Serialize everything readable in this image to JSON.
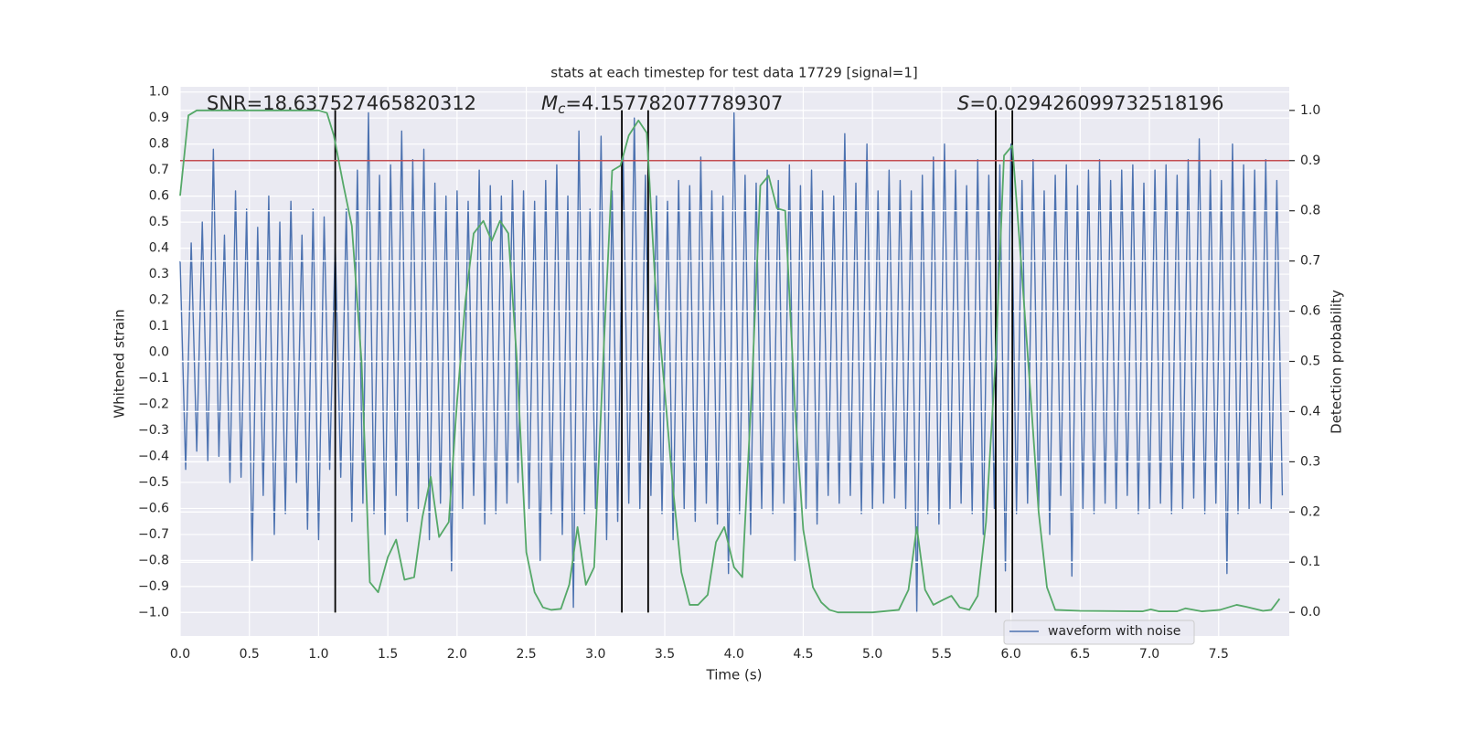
{
  "chart_data": {
    "type": "line",
    "title": "stats at each timestep for test data 17729 [signal=1]",
    "xlabel": "Time (s)",
    "ylabel": "Whitened strain",
    "y2label": "Detection probability",
    "grid": true,
    "xlim": [
      0,
      8.01
    ],
    "ylim": [
      -1.09,
      1.02
    ],
    "y2lim": [
      -0.047,
      1.047
    ],
    "xticks": [
      {
        "value": 0,
        "label": "0.0"
      },
      {
        "value": 0.5,
        "label": "0.5"
      },
      {
        "value": 1,
        "label": "1.0"
      },
      {
        "value": 1.5,
        "label": "1.5"
      },
      {
        "value": 2,
        "label": "2.0"
      },
      {
        "value": 2.5,
        "label": "2.5"
      },
      {
        "value": 3,
        "label": "3.0"
      },
      {
        "value": 3.5,
        "label": "3.5"
      },
      {
        "value": 4,
        "label": "4.0"
      },
      {
        "value": 4.5,
        "label": "4.5"
      },
      {
        "value": 5,
        "label": "5.0"
      },
      {
        "value": 5.5,
        "label": "5.5"
      },
      {
        "value": 6,
        "label": "6.0"
      },
      {
        "value": 6.5,
        "label": "6.5"
      },
      {
        "value": 7,
        "label": "7.0"
      },
      {
        "value": 7.5,
        "label": "7.5"
      }
    ],
    "yticks": [
      {
        "value": -1,
        "label": "−1.0"
      },
      {
        "value": -0.9,
        "label": "−0.9"
      },
      {
        "value": -0.8,
        "label": "−0.8"
      },
      {
        "value": -0.7,
        "label": "−0.7"
      },
      {
        "value": -0.6,
        "label": "−0.6"
      },
      {
        "value": -0.5,
        "label": "−0.5"
      },
      {
        "value": -0.4,
        "label": "−0.4"
      },
      {
        "value": -0.3,
        "label": "−0.3"
      },
      {
        "value": -0.2,
        "label": "−0.2"
      },
      {
        "value": -0.1,
        "label": "−0.1"
      },
      {
        "value": 0,
        "label": "0.0"
      },
      {
        "value": 0.1,
        "label": "0.1"
      },
      {
        "value": 0.2,
        "label": "0.2"
      },
      {
        "value": 0.3,
        "label": "0.3"
      },
      {
        "value": 0.4,
        "label": "0.4"
      },
      {
        "value": 0.5,
        "label": "0.5"
      },
      {
        "value": 0.6,
        "label": "0.6"
      },
      {
        "value": 0.7,
        "label": "0.7"
      },
      {
        "value": 0.8,
        "label": "0.8"
      },
      {
        "value": 0.9,
        "label": "0.9"
      },
      {
        "value": 1,
        "label": "1.0"
      }
    ],
    "y2ticks": [
      {
        "value": 0,
        "label": "0.0"
      },
      {
        "value": 0.1,
        "label": "0.1"
      },
      {
        "value": 0.2,
        "label": "0.2"
      },
      {
        "value": 0.3,
        "label": "0.3"
      },
      {
        "value": 0.4,
        "label": "0.4"
      },
      {
        "value": 0.5,
        "label": "0.5"
      },
      {
        "value": 0.6,
        "label": "0.6"
      },
      {
        "value": 0.7,
        "label": "0.7"
      },
      {
        "value": 0.8,
        "label": "0.8"
      },
      {
        "value": 0.9,
        "label": "0.9"
      },
      {
        "value": 1,
        "label": "1.0"
      }
    ],
    "series": [
      {
        "name": "waveform with noise",
        "color": "#4c72b0",
        "x": [
          0,
          0.04,
          0.08,
          0.12,
          0.16,
          0.2,
          0.24,
          0.28,
          0.32,
          0.36,
          0.4,
          0.44,
          0.48,
          0.52,
          0.56,
          0.6,
          0.64,
          0.68,
          0.72,
          0.76,
          0.8,
          0.84,
          0.88,
          0.92,
          0.96,
          1,
          1.04,
          1.08,
          1.12,
          1.16,
          1.2,
          1.24,
          1.28,
          1.32,
          1.36,
          1.4,
          1.44,
          1.48,
          1.52,
          1.56,
          1.6,
          1.64,
          1.68,
          1.72,
          1.76,
          1.8,
          1.84,
          1.88,
          1.92,
          1.96,
          2,
          2.04,
          2.08,
          2.12,
          2.16,
          2.2,
          2.24,
          2.28,
          2.32,
          2.36,
          2.4,
          2.44,
          2.48,
          2.52,
          2.56,
          2.6,
          2.64,
          2.68,
          2.72,
          2.76,
          2.8,
          2.84,
          2.88,
          2.92,
          2.96,
          3,
          3.04,
          3.08,
          3.12,
          3.16,
          3.2,
          3.24,
          3.28,
          3.32,
          3.36,
          3.4,
          3.44,
          3.48,
          3.52,
          3.56,
          3.6,
          3.64,
          3.68,
          3.72,
          3.76,
          3.8,
          3.84,
          3.88,
          3.92,
          3.96,
          4,
          4.04,
          4.08,
          4.12,
          4.16,
          4.2,
          4.24,
          4.28,
          4.32,
          4.36,
          4.4,
          4.44,
          4.48,
          4.52,
          4.56,
          4.6,
          4.64,
          4.68,
          4.72,
          4.76,
          4.8,
          4.84,
          4.88,
          4.92,
          4.96,
          5,
          5.04,
          5.08,
          5.12,
          5.16,
          5.2,
          5.24,
          5.28,
          5.32,
          5.36,
          5.4,
          5.44,
          5.48,
          5.52,
          5.56,
          5.6,
          5.64,
          5.68,
          5.72,
          5.76,
          5.8,
          5.84,
          5.88,
          5.92,
          5.96,
          6,
          6.04,
          6.08,
          6.12,
          6.16,
          6.2,
          6.24,
          6.28,
          6.32,
          6.36,
          6.4,
          6.44,
          6.48,
          6.52,
          6.56,
          6.6,
          6.64,
          6.68,
          6.72,
          6.76,
          6.8,
          6.84,
          6.88,
          6.92,
          6.96,
          7,
          7.04,
          7.08,
          7.12,
          7.16,
          7.2,
          7.24,
          7.28,
          7.32,
          7.36,
          7.4,
          7.44,
          7.48,
          7.52,
          7.56,
          7.6,
          7.64,
          7.68,
          7.72,
          7.76,
          7.8,
          7.84,
          7.88,
          7.92,
          7.96
        ],
        "values": [
          0.35,
          -0.45,
          0.42,
          -0.38,
          0.5,
          -0.42,
          0.78,
          -0.4,
          0.45,
          -0.5,
          0.62,
          -0.48,
          0.55,
          -0.8,
          0.48,
          -0.55,
          0.6,
          -0.7,
          0.5,
          -0.62,
          0.58,
          -0.5,
          0.45,
          -0.68,
          0.55,
          -0.72,
          0.52,
          -0.45,
          0.42,
          -0.48,
          0.55,
          -0.65,
          0.7,
          -0.58,
          0.92,
          -0.62,
          0.68,
          -0.7,
          0.72,
          -0.55,
          0.85,
          -0.65,
          0.74,
          -0.6,
          0.78,
          -0.72,
          0.65,
          -0.58,
          0.6,
          -0.84,
          0.62,
          -0.6,
          0.58,
          -0.55,
          0.7,
          -0.66,
          0.64,
          -0.62,
          0.6,
          -0.58,
          0.66,
          -0.5,
          0.62,
          -0.6,
          0.58,
          -0.8,
          0.66,
          -0.62,
          0.72,
          -0.7,
          0.6,
          -0.98,
          0.85,
          -0.62,
          0.55,
          -0.6,
          0.83,
          -0.72,
          0.62,
          -0.65,
          0.75,
          -0.58,
          0.9,
          -0.6,
          0.68,
          -0.55,
          0.6,
          -0.62,
          0.58,
          -0.72,
          0.66,
          -0.6,
          0.64,
          -0.65,
          0.75,
          -0.58,
          0.62,
          -0.66,
          0.6,
          -0.85,
          0.92,
          -0.62,
          0.68,
          -0.7,
          0.65,
          -0.6,
          0.7,
          -0.62,
          0.66,
          -0.58,
          0.72,
          -0.8,
          0.64,
          -0.6,
          0.7,
          -0.66,
          0.62,
          -0.55,
          0.6,
          -0.58,
          0.84,
          -0.55,
          0.65,
          -0.62,
          0.8,
          -0.6,
          0.62,
          -0.58,
          0.7,
          -0.56,
          0.66,
          -0.6,
          0.62,
          -1.0,
          0.68,
          -0.62,
          0.75,
          -0.66,
          0.8,
          -0.6,
          0.7,
          -0.58,
          0.64,
          -0.62,
          0.74,
          -0.7,
          0.68,
          -0.6,
          0.72,
          -0.84,
          0.8,
          -0.62,
          0.66,
          -0.58,
          0.74,
          -0.6,
          0.62,
          -0.7,
          0.68,
          -0.55,
          0.72,
          -0.86,
          0.64,
          -0.6,
          0.7,
          -0.62,
          0.74,
          -0.58,
          0.66,
          -0.6,
          0.7,
          -0.55,
          0.72,
          -0.62,
          0.65,
          -0.6,
          0.7,
          -0.58,
          0.72,
          -0.62,
          0.68,
          -0.6,
          0.74,
          -0.56,
          0.82,
          -0.62,
          0.7,
          -0.58,
          0.66,
          -0.85,
          0.8,
          -0.62,
          0.72,
          -0.6,
          0.7,
          -0.58,
          0.74,
          -0.6,
          0.66,
          -0.55
        ]
      },
      {
        "color": "#55a868",
        "axis": "y2",
        "x": [
          0,
          0.06,
          0.12,
          0.5,
          1.0,
          1.06,
          1.11,
          1.18,
          1.24,
          1.31,
          1.37,
          1.43,
          1.5,
          1.56,
          1.62,
          1.69,
          1.75,
          1.81,
          1.87,
          1.94,
          2.0,
          2.06,
          2.12,
          2.19,
          2.25,
          2.31,
          2.37,
          2.43,
          2.5,
          2.56,
          2.62,
          2.68,
          2.75,
          2.81,
          2.87,
          2.93,
          2.99,
          3.06,
          3.12,
          3.18,
          3.24,
          3.31,
          3.37,
          3.43,
          3.5,
          3.56,
          3.62,
          3.68,
          3.74,
          3.81,
          3.87,
          3.93,
          4.0,
          4.06,
          4.13,
          4.19,
          4.25,
          4.31,
          4.37,
          4.44,
          4.5,
          4.57,
          4.63,
          4.69,
          4.75,
          5.0,
          5.19,
          5.26,
          5.32,
          5.38,
          5.44,
          5.51,
          5.57,
          5.63,
          5.7,
          5.76,
          5.82,
          5.89,
          5.95,
          6.01,
          6.07,
          6.14,
          6.2,
          6.26,
          6.32,
          6.5,
          6.95,
          7.01,
          7.07,
          7.2,
          7.26,
          7.38,
          7.51,
          7.63,
          7.7,
          7.82,
          7.88,
          7.94
        ],
        "values": [
          0.83,
          0.99,
          1.0,
          1.0,
          1.0,
          0.995,
          0.95,
          0.85,
          0.77,
          0.5,
          0.06,
          0.04,
          0.11,
          0.145,
          0.065,
          0.07,
          0.19,
          0.27,
          0.15,
          0.18,
          0.42,
          0.62,
          0.755,
          0.78,
          0.74,
          0.78,
          0.755,
          0.51,
          0.12,
          0.04,
          0.01,
          0.005,
          0.007,
          0.055,
          0.17,
          0.055,
          0.09,
          0.53,
          0.88,
          0.89,
          0.95,
          0.98,
          0.955,
          0.66,
          0.44,
          0.245,
          0.08,
          0.015,
          0.015,
          0.035,
          0.14,
          0.17,
          0.09,
          0.07,
          0.455,
          0.85,
          0.87,
          0.805,
          0.8,
          0.41,
          0.165,
          0.05,
          0.02,
          0.005,
          0.0,
          0.0,
          0.005,
          0.045,
          0.17,
          0.045,
          0.015,
          0.025,
          0.033,
          0.01,
          0.005,
          0.033,
          0.18,
          0.51,
          0.91,
          0.93,
          0.71,
          0.44,
          0.2,
          0.05,
          0.005,
          0.003,
          0.002,
          0.006,
          0.002,
          0.002,
          0.008,
          0.002,
          0.005,
          0.015,
          0.011,
          0.003,
          0.005,
          0.027
        ]
      }
    ],
    "threshold": {
      "value": 0.9,
      "axis": "y2",
      "color": "#c44e52"
    },
    "vlines": {
      "x": [
        1.12,
        3.19,
        3.38,
        5.89,
        6.01
      ],
      "ymin": -1.0,
      "ymax": 0.93,
      "color": "#000000"
    },
    "annotations": [
      {
        "text": "SNR=18.637527465820312"
      },
      {
        "symbol": "M",
        "sub": "c",
        "text": "=4.157782077789307"
      },
      {
        "symbol": "S",
        "text": "=0.029426099732518196"
      }
    ]
  }
}
